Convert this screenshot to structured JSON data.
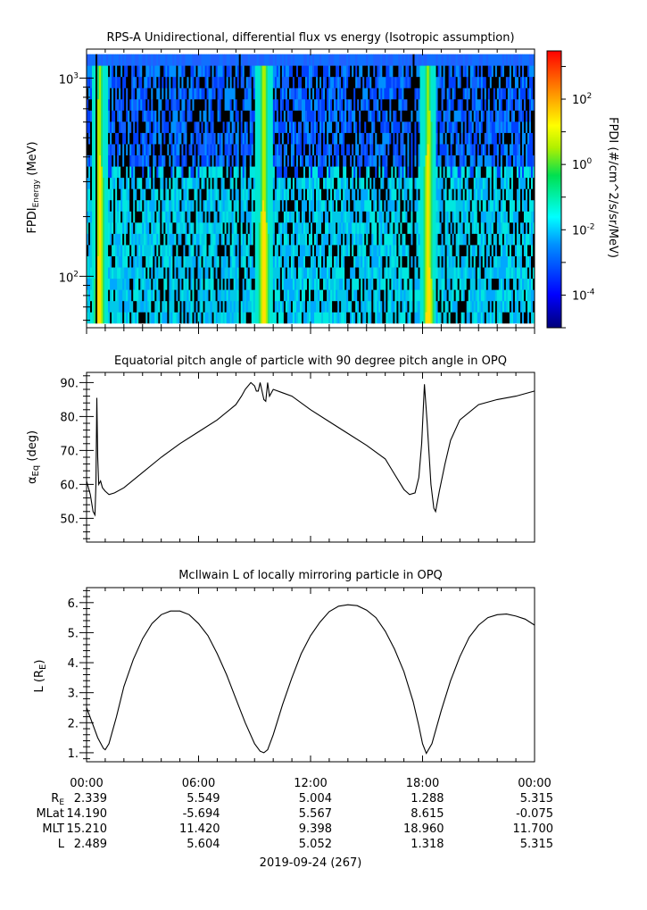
{
  "chart_data": [
    {
      "type": "heatmap",
      "title": "RPS-A Unidirectional, differential flux vs energy (Isotropic assumption)",
      "ylabel": "FPDI",
      "ylabel_sub": "Energy",
      "ylabel_unit": "(MeV)",
      "yscale": "log",
      "ylim": [
        55,
        1400
      ],
      "yticks": [
        {
          "value": 100,
          "base": "10",
          "exp": "2"
        },
        {
          "value": 1000,
          "base": "10",
          "exp": "3"
        }
      ],
      "colorbar": {
        "label": "FPDI (#/cm^2/s/sr/MeV)",
        "scale": "log",
        "range": [
          1e-05,
          3000
        ],
        "ticks": [
          {
            "value": 0.0001,
            "base": "10",
            "exp": "-4"
          },
          {
            "value": 0.01,
            "base": "10",
            "exp": "-2"
          },
          {
            "value": 1,
            "base": "10",
            "exp": "0"
          },
          {
            "value": 100,
            "base": "10",
            "exp": "2"
          }
        ]
      },
      "bright_band_times_hours": [
        0.7,
        9.5,
        18.3
      ],
      "data_gap_times_hours": [
        0.55,
        8.2,
        17.5
      ]
    },
    {
      "type": "line",
      "title": "Equatorial pitch angle of particle with 90 degree pitch angle in OPQ",
      "ylabel": "α",
      "ylabel_sub": "Eq",
      "ylabel_unit": "(deg)",
      "ylim": [
        43,
        93
      ],
      "yticks": [
        "50.",
        "60.",
        "70.",
        "80.",
        "90."
      ],
      "series": [
        {
          "x": [
            0,
            0.2,
            0.35,
            0.45,
            0.5,
            0.55,
            0.6,
            0.65,
            0.75,
            0.85,
            1.0,
            1.2,
            1.5,
            2,
            3,
            4,
            5,
            6,
            7,
            8,
            8.3,
            8.5,
            8.8,
            9.0,
            9.1,
            9.2,
            9.3,
            9.5,
            9.6,
            9.7,
            9.8,
            10,
            10.5,
            11,
            12,
            13,
            14,
            15,
            16,
            16.5,
            17,
            17.3,
            17.6,
            17.8,
            17.95,
            18.1,
            18.25,
            18.45,
            18.6,
            18.7,
            18.9,
            19.2,
            19.5,
            20,
            21,
            22,
            23,
            24
          ],
          "y": [
            61,
            57,
            52,
            51,
            60,
            85.5,
            68,
            60,
            61,
            59,
            58,
            57,
            57.5,
            59,
            63.5,
            68,
            72,
            75.5,
            79,
            83.5,
            86,
            88,
            90,
            89,
            87.5,
            87.5,
            90,
            85,
            84.5,
            90,
            86,
            88,
            87,
            86,
            82,
            78.5,
            75,
            71.5,
            67.5,
            63,
            58.5,
            57,
            57.5,
            62,
            72,
            89.5,
            78,
            60,
            53,
            52,
            58,
            66,
            73,
            79,
            83.5,
            85,
            86,
            87.5
          ]
        }
      ]
    },
    {
      "type": "line",
      "title": "McIlwain L of locally mirroring particle in OPQ",
      "ylabel": "L (R",
      "ylabel_sub": "E",
      "ylabel_unit": ")",
      "ylim": [
        0.7,
        6.5
      ],
      "yticks": [
        "1.",
        "2.",
        "3.",
        "4.",
        "5.",
        "6."
      ],
      "series": [
        {
          "x": [
            0,
            0.3,
            0.6,
            0.9,
            1.0,
            1.2,
            1.6,
            2,
            2.5,
            3,
            3.5,
            4,
            4.5,
            5,
            5.5,
            6,
            6.5,
            7,
            7.5,
            8,
            8.5,
            9,
            9.3,
            9.5,
            9.7,
            10,
            10.5,
            11,
            11.5,
            12,
            12.5,
            13,
            13.5,
            14,
            14.5,
            15,
            15.5,
            16,
            16.5,
            17,
            17.5,
            17.8,
            18.0,
            18.2,
            18.5,
            19,
            19.5,
            20,
            20.5,
            21,
            21.5,
            22,
            22.5,
            23,
            23.5,
            24
          ],
          "y": [
            2.5,
            2.0,
            1.5,
            1.15,
            1.1,
            1.3,
            2.2,
            3.2,
            4.1,
            4.8,
            5.3,
            5.6,
            5.72,
            5.72,
            5.6,
            5.3,
            4.9,
            4.3,
            3.6,
            2.8,
            2.0,
            1.3,
            1.05,
            1.0,
            1.1,
            1.6,
            2.6,
            3.5,
            4.3,
            4.9,
            5.35,
            5.7,
            5.88,
            5.93,
            5.9,
            5.75,
            5.5,
            5.05,
            4.45,
            3.7,
            2.7,
            1.9,
            1.3,
            0.98,
            1.3,
            2.4,
            3.4,
            4.2,
            4.85,
            5.25,
            5.5,
            5.6,
            5.62,
            5.55,
            5.45,
            5.25
          ]
        }
      ]
    }
  ],
  "xaxis": {
    "range_hours": [
      0,
      24
    ],
    "tick_labels": [
      "00:00",
      "06:00",
      "12:00",
      "18:00",
      "00:00"
    ],
    "date_label": "2019-09-24 (267)"
  },
  "ephemeris": {
    "rows": [
      {
        "label": "R",
        "label_sub": "E",
        "values": [
          "2.339",
          "5.549",
          "5.004",
          "1.288",
          "5.315"
        ]
      },
      {
        "label": "MLat",
        "label_sub": "",
        "values": [
          "14.190",
          "-5.694",
          "5.567",
          "8.615",
          "-0.075"
        ]
      },
      {
        "label": "MLT",
        "label_sub": "",
        "values": [
          "15.210",
          "11.420",
          "9.398",
          "18.960",
          "11.700"
        ]
      },
      {
        "label": "L",
        "label_sub": "",
        "values": [
          "2.489",
          "5.604",
          "5.052",
          "1.318",
          "5.315"
        ]
      }
    ]
  }
}
